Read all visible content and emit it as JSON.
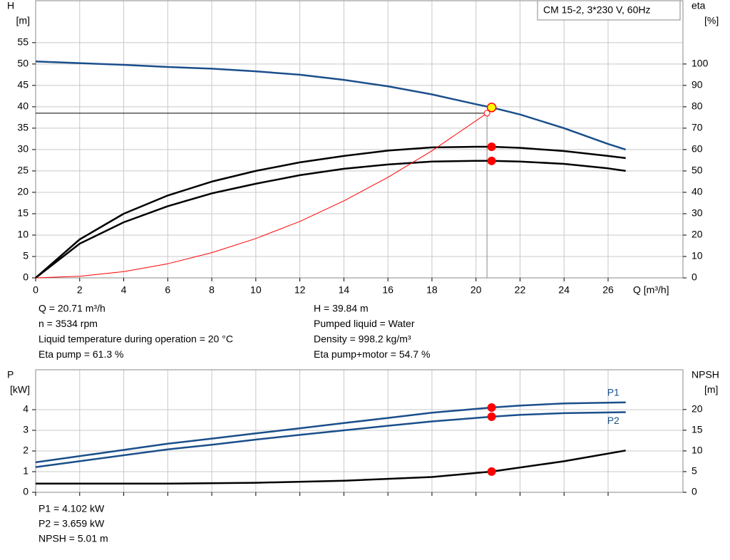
{
  "chart_data": [
    {
      "type": "line",
      "legend_title": "CM 15-2, 3*230 V, 60Hz",
      "ylabel": "H",
      "yunit": "[m]",
      "y2label": "eta",
      "y2unit": "[%]",
      "xlabel": "Q [m³/h]",
      "xlim": [
        0,
        29.4
      ],
      "xticks": [
        0,
        2,
        4,
        6,
        8,
        10,
        12,
        14,
        16,
        18,
        20,
        22,
        24,
        26
      ],
      "ylim": [
        0,
        64.8
      ],
      "yticks": [
        0,
        5,
        10,
        15,
        20,
        25,
        30,
        35,
        40,
        45,
        50,
        55
      ],
      "y2lim": [
        0,
        129.6
      ],
      "y2ticks": [
        0,
        10,
        20,
        30,
        40,
        50,
        60,
        70,
        80,
        90,
        100
      ],
      "show_xtick_labels": true,
      "grid": true,
      "series": [
        {
          "color": "#1a4f8b",
          "x": [
            0,
            2,
            4,
            6,
            8,
            10,
            12,
            14,
            16,
            18,
            20,
            20.71,
            22,
            24,
            26,
            26.8
          ],
          "values": [
            50.6,
            50.2,
            49.8,
            49.3,
            48.9,
            48.3,
            47.5,
            46.3,
            44.8,
            42.9,
            40.6,
            39.84,
            38.2,
            35.0,
            31.3,
            30.0
          ]
        },
        {
          "color": "#000000",
          "axis": "y2",
          "x": [
            0,
            2,
            4,
            6,
            8,
            10,
            12,
            14,
            16,
            18,
            20,
            20.71,
            22,
            24,
            26,
            26.8
          ],
          "values": [
            0,
            18,
            30,
            38.5,
            45,
            50,
            54,
            57,
            59.5,
            61,
            61.3,
            61.3,
            60.8,
            59.3,
            57,
            56
          ]
        },
        {
          "color": "#000000",
          "axis": "y2",
          "x": [
            0,
            2,
            4,
            6,
            8,
            10,
            12,
            14,
            16,
            18,
            20,
            20.71,
            22,
            24,
            26,
            26.8
          ],
          "values": [
            0,
            16,
            26,
            33.5,
            39.5,
            44,
            48,
            51,
            53,
            54.4,
            54.7,
            54.7,
            54.4,
            53.3,
            51.2,
            50
          ]
        },
        {
          "color": "#ff0000",
          "thin": true,
          "x": [
            0,
            2,
            4,
            6,
            8,
            10,
            12,
            14,
            16,
            18,
            20.5
          ],
          "values": [
            0,
            0.37,
            1.47,
            3.3,
            5.9,
            9.2,
            13.2,
            18,
            23.5,
            29.7,
            38.5
          ]
        }
      ],
      "crosshair": {
        "x": 20.5,
        "y": 38.5
      },
      "markers": [
        {
          "x": 20.5,
          "y": 38.5,
          "color": "#ffffff",
          "small": true
        },
        {
          "x": 20.71,
          "y": 39.84,
          "color": "#ffff00"
        },
        {
          "x": 20.71,
          "y": 61.3,
          "color": "#ff0000",
          "axis": "y2"
        },
        {
          "x": 20.71,
          "y": 54.7,
          "color": "#ff0000",
          "axis": "y2"
        }
      ]
    },
    {
      "type": "line",
      "ylabel": "P",
      "yunit": "[kW]",
      "y2label": "NPSH",
      "y2unit": "[m]",
      "xlim": [
        0,
        29.4
      ],
      "xticks": [
        0,
        2,
        4,
        6,
        8,
        10,
        12,
        14,
        16,
        18,
        20,
        22,
        24,
        26
      ],
      "ylim": [
        0,
        5.93
      ],
      "yticks": [
        0,
        1,
        2,
        3,
        4
      ],
      "y2lim": [
        0,
        29.6
      ],
      "y2ticks": [
        0,
        5,
        10,
        15,
        20
      ],
      "show_xtick_labels": false,
      "grid": true,
      "series": [
        {
          "name": "P1",
          "color": "#1a4f8b",
          "x": [
            0,
            6,
            8,
            10,
            12,
            14,
            16,
            18,
            20.71,
            22,
            24,
            26.8
          ],
          "values": [
            1.45,
            2.35,
            2.6,
            2.85,
            3.1,
            3.35,
            3.6,
            3.85,
            4.102,
            4.2,
            4.3,
            4.35
          ]
        },
        {
          "name": "P2",
          "color": "#1a4f8b",
          "x": [
            0,
            6,
            8,
            10,
            12,
            14,
            16,
            18,
            20.71,
            22,
            24,
            26.8
          ],
          "values": [
            1.22,
            2.08,
            2.3,
            2.55,
            2.78,
            3.0,
            3.22,
            3.43,
            3.659,
            3.75,
            3.83,
            3.88
          ]
        },
        {
          "color": "#000000",
          "axis": "y2",
          "x": [
            0,
            6,
            10,
            14,
            18,
            20.71,
            24,
            26.8
          ],
          "values": [
            2.1,
            2.1,
            2.3,
            2.8,
            3.7,
            5.01,
            7.5,
            10.1
          ]
        }
      ],
      "markers": [
        {
          "x": 20.71,
          "y": 4.102,
          "color": "#ff0000"
        },
        {
          "x": 20.71,
          "y": 3.659,
          "color": "#ff0000"
        },
        {
          "x": 20.71,
          "y": 5.01,
          "color": "#ff0000",
          "axis": "y2"
        }
      ]
    }
  ],
  "readout": {
    "left": [
      "Q = 20.71 m³/h",
      "n = 3534 rpm",
      "Liquid temperature during operation = 20 °C",
      "Eta pump = 61.3 %"
    ],
    "right": [
      "H = 39.84 m",
      "Pumped liquid = Water",
      "Density = 998.2 kg/m³",
      "Eta pump+motor = 54.7 %"
    ],
    "power": [
      "P1 = 4.102 kW",
      "P2 = 3.659 kW",
      "NPSH = 5.01 m"
    ]
  }
}
